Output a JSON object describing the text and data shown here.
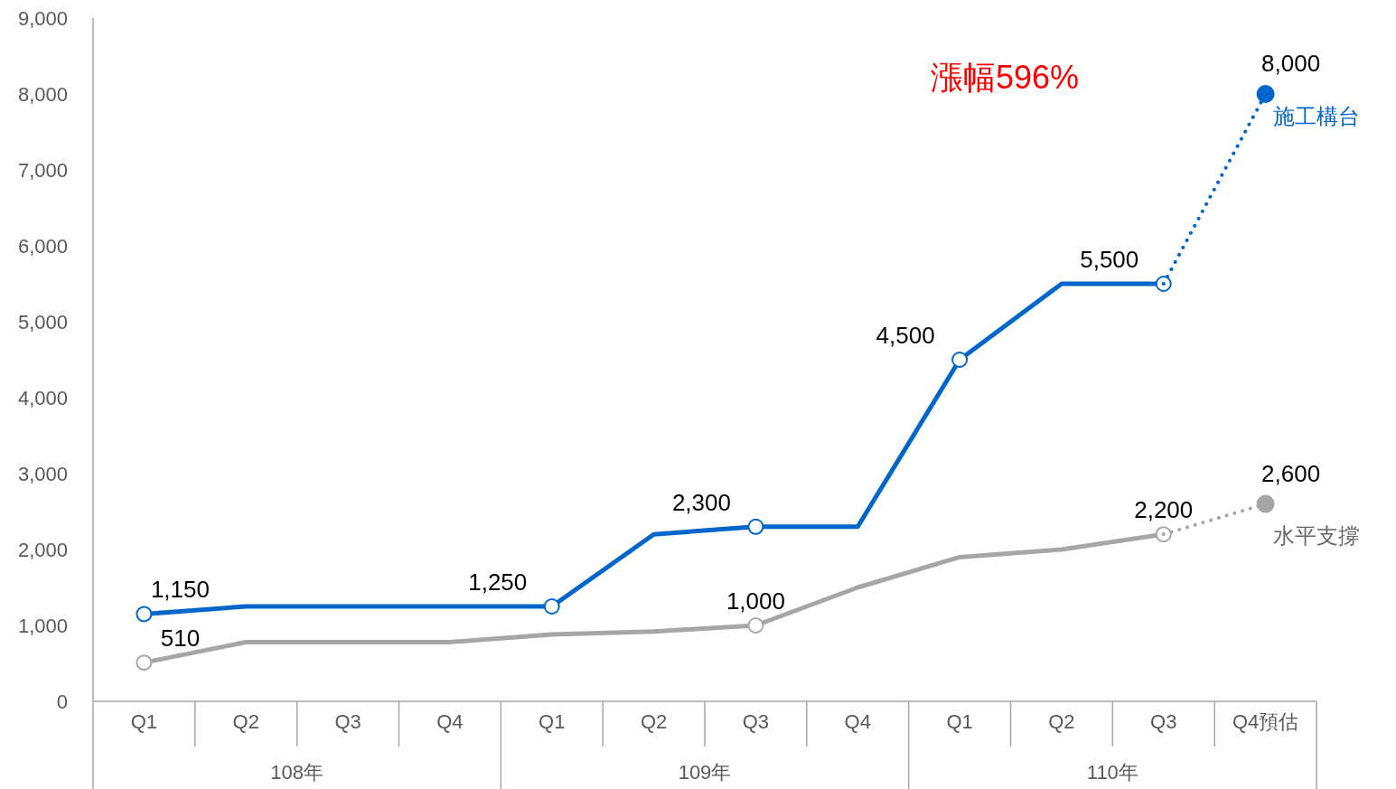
{
  "chart_data": {
    "type": "line",
    "categories": [
      "Q1",
      "Q2",
      "Q3",
      "Q4",
      "Q1",
      "Q2",
      "Q3",
      "Q4",
      "Q1",
      "Q2",
      "Q3",
      "Q4預估"
    ],
    "ylim": [
      0,
      9000
    ],
    "yticks": [
      {
        "value": 0,
        "label": "0"
      },
      {
        "value": 1000,
        "label": "1,000"
      },
      {
        "value": 2000,
        "label": "2,000"
      },
      {
        "value": 3000,
        "label": "3,000"
      },
      {
        "value": 4000,
        "label": "4,000"
      },
      {
        "value": 5000,
        "label": "5,000"
      },
      {
        "value": 6000,
        "label": "6,000"
      },
      {
        "value": 7000,
        "label": "7,000"
      },
      {
        "value": 8000,
        "label": "8,000"
      },
      {
        "value": 9000,
        "label": "9,000"
      }
    ],
    "grid": false,
    "series": [
      {
        "name": "施工構台",
        "color": "#0066cc",
        "line_style": "solid",
        "values": [
          1150,
          1250,
          1250,
          1250,
          1250,
          2200,
          2300,
          2300,
          4500,
          5500,
          5500,
          null
        ],
        "value_labels": [
          "1,150",
          null,
          null,
          null,
          "1,250",
          null,
          "2,300",
          null,
          "4,500",
          null,
          "5,500",
          null
        ]
      },
      {
        "color": "#0066cc",
        "line_style": "dotted",
        "values": [
          null,
          null,
          null,
          null,
          null,
          null,
          null,
          null,
          null,
          null,
          5500,
          8000
        ],
        "value_labels": [
          null,
          null,
          null,
          null,
          null,
          null,
          null,
          null,
          null,
          null,
          null,
          "8,000"
        ]
      },
      {
        "name": "水平支撐",
        "color": "#a6a6a6",
        "line_style": "solid",
        "values": [
          510,
          780,
          780,
          780,
          880,
          920,
          1000,
          1500,
          1900,
          2000,
          2200,
          null
        ],
        "value_labels": [
          "510",
          null,
          null,
          null,
          null,
          null,
          "1,000",
          null,
          null,
          null,
          "2,200",
          null
        ]
      },
      {
        "color": "#a6a6a6",
        "line_style": "dotted",
        "values": [
          null,
          null,
          null,
          null,
          null,
          null,
          null,
          null,
          null,
          null,
          2200,
          2600
        ],
        "value_labels": [
          null,
          null,
          null,
          null,
          null,
          null,
          null,
          null,
          null,
          null,
          null,
          "2,600"
        ]
      }
    ],
    "annotations": [
      "漲幅596%",
      "108年",
      "109年",
      "110年"
    ]
  }
}
